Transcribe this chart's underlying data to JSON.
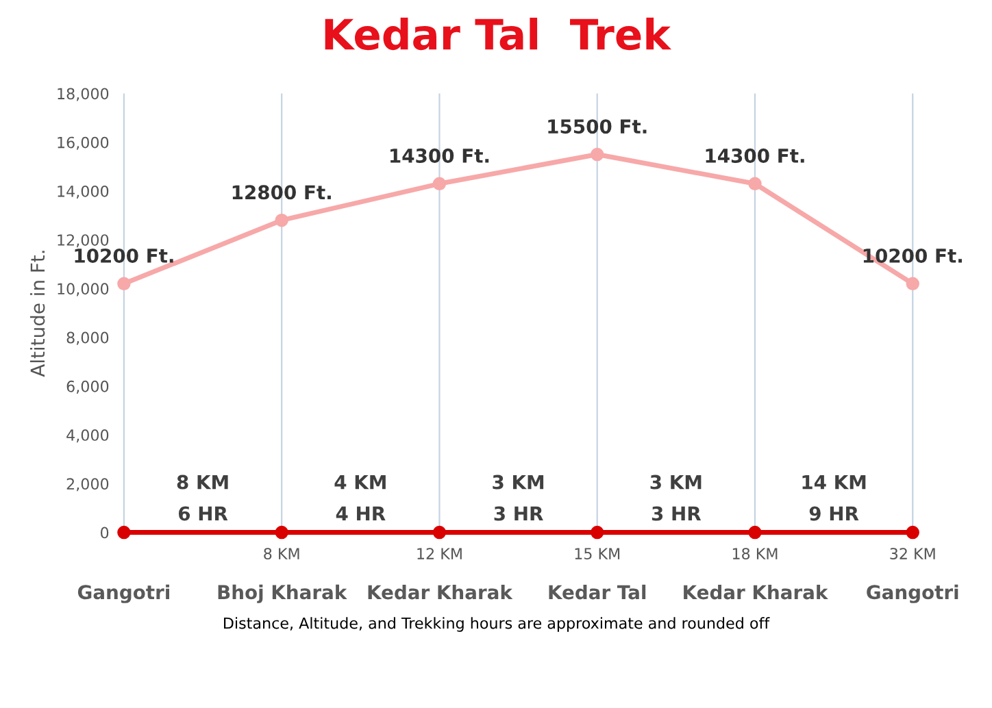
{
  "chart_data": {
    "type": "line",
    "title": "Kedar Tal  Trek",
    "ylabel": "Altitude in Ft.",
    "categories": [
      null,
      "8 KM",
      "12 KM",
      "15 KM",
      "18 KM",
      "32 KM"
    ],
    "series": [
      {
        "color": "#f7a8a8",
        "values": [
          10200,
          12800,
          14300,
          15500,
          14300,
          10200
        ],
        "value_labels": [
          "10200 Ft.",
          "12800 Ft.",
          "14300 Ft.",
          "15500 Ft.",
          "14300 Ft.",
          "10200 Ft."
        ]
      },
      {
        "color": "#d90000",
        "values": [
          0,
          0,
          0,
          0,
          0,
          0
        ]
      }
    ],
    "ylim": [
      0,
      18000
    ],
    "yticks": [
      {
        "value": 0,
        "label": "0"
      },
      {
        "value": 2000,
        "label": "2,000"
      },
      {
        "value": 4000,
        "label": "4,000"
      },
      {
        "value": 6000,
        "label": "6,000"
      },
      {
        "value": 8000,
        "label": "8,000"
      },
      {
        "value": 10000,
        "label": "10,000"
      },
      {
        "value": 12000,
        "label": "12,000"
      },
      {
        "value": 14000,
        "label": "14,000"
      },
      {
        "value": 16000,
        "label": "16,000"
      },
      {
        "value": 18000,
        "label": "18,000"
      }
    ],
    "marker": "circle",
    "grid": "x",
    "legend": false,
    "annotations": [
      "Gangotri",
      "Bhoj Kharak",
      "Kedar Kharak",
      "Kedar Tal",
      "Kedar Kharak",
      "Gangotri",
      "8 KM\n6 HR",
      "4 KM\n4 HR",
      "3 KM\n3 HR",
      "3 KM\n3 HR",
      "14 KM\n9 HR",
      "Distance, Altitude, and Trekking hours are approximate and rounded off"
    ]
  }
}
